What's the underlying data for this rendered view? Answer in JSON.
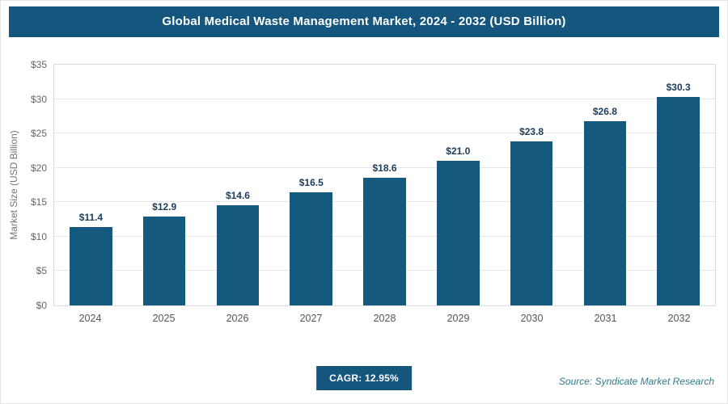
{
  "header": {
    "title": "Global Medical Waste Management Market, 2024 - 2032 (USD Billion)"
  },
  "chart_data": {
    "type": "bar",
    "title": "Global Medical Waste Management Market, 2024 - 2032 (USD Billion)",
    "categories": [
      "2024",
      "2025",
      "2026",
      "2027",
      "2028",
      "2029",
      "2030",
      "2031",
      "2032"
    ],
    "values": [
      11.4,
      12.9,
      14.6,
      16.5,
      18.6,
      21.0,
      23.8,
      26.8,
      30.3
    ],
    "value_labels": [
      "$11.4",
      "$12.9",
      "$14.6",
      "$16.5",
      "$18.6",
      "$21.0",
      "$23.8",
      "$26.8",
      "$30.3"
    ],
    "xlabel": "",
    "ylabel": "Market Size (USD Billion)",
    "ylim": [
      0,
      35
    ],
    "yticks": [
      0,
      5,
      10,
      15,
      20,
      25,
      30,
      35
    ],
    "ytick_labels": [
      "$0",
      "$5",
      "$10",
      "$15",
      "$20",
      "$25",
      "$30",
      "$35"
    ],
    "grid": true,
    "legend": "none",
    "bar_color": "#16597f"
  },
  "footer": {
    "cagr_label": "CAGR: 12.95%",
    "source": "Source: Syndicate Market Research"
  },
  "colors": {
    "header_bg": "#14567d",
    "bar": "#16597f",
    "badge_bg": "#14567d",
    "source_text": "#2e7d8e",
    "gridline": "#e7e7e7"
  }
}
